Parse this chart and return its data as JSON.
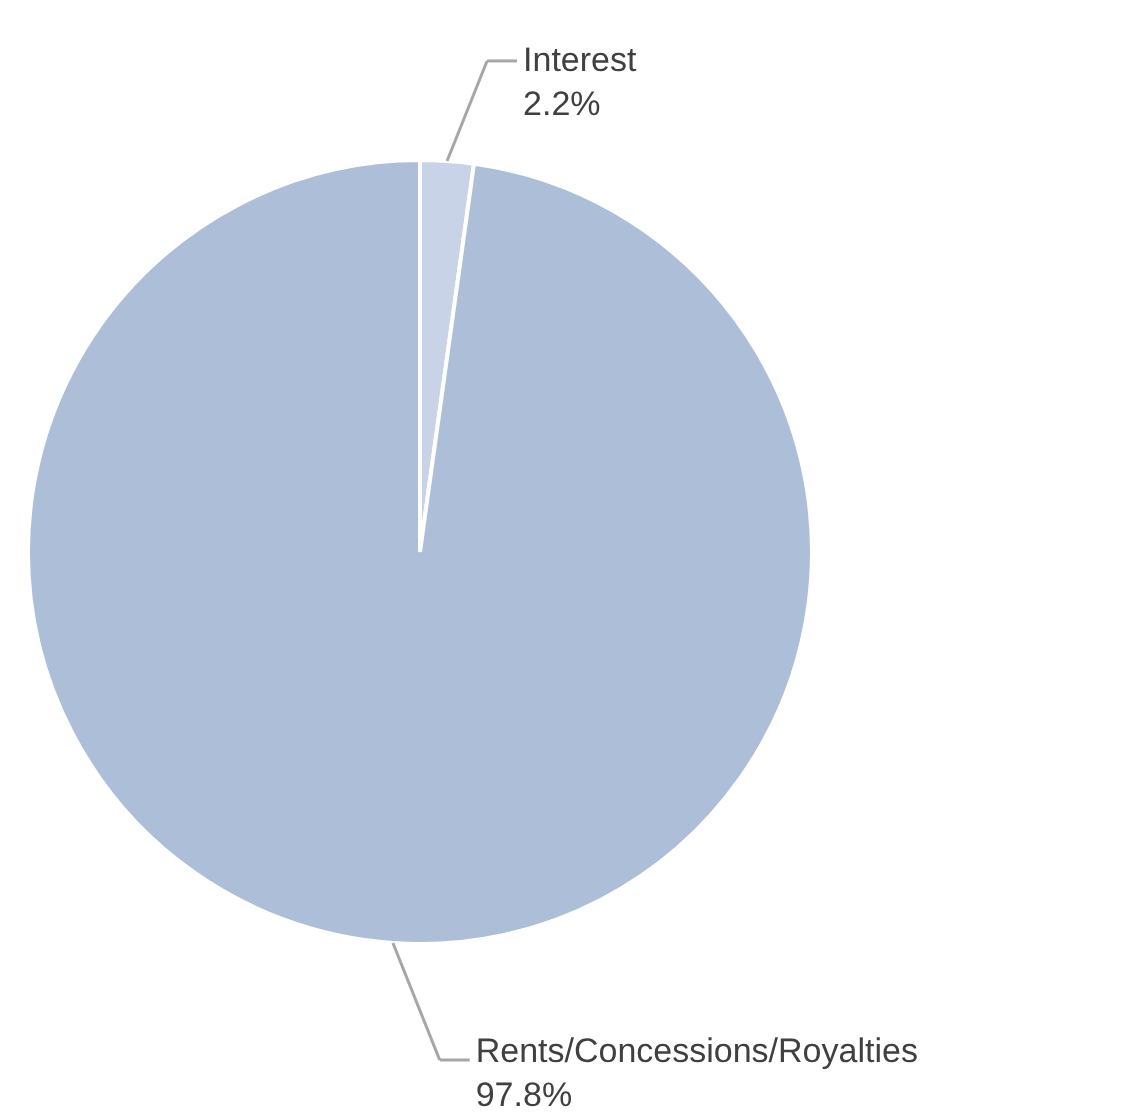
{
  "chart_data": {
    "type": "pie",
    "categories": [
      "Interest",
      "Rents/Concessions/Royalties"
    ],
    "values": [
      2.2,
      97.8
    ],
    "colors": [
      "#c9d3e7",
      "#adbed9"
    ],
    "value_labels": [
      "2.2%",
      "97.8%"
    ]
  }
}
